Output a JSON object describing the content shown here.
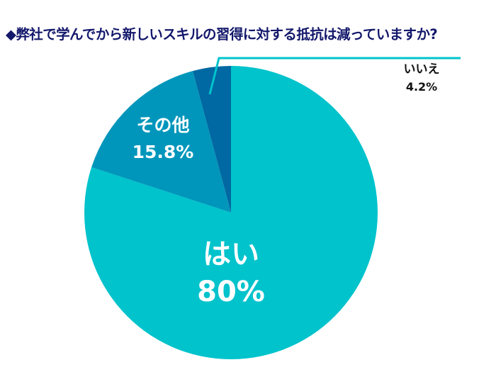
{
  "title": "◆弊社で学んでから新しいスキルの習得に対する抵抗は減っていますか?",
  "chart_data": {
    "type": "pie",
    "title": "◆弊社で学んでから新しいスキルの習得に対する抵抗は減っていますか?",
    "categories": [
      "はい",
      "その他",
      "いいえ"
    ],
    "values": [
      80,
      15.8,
      4.2
    ],
    "value_labels": [
      "80%",
      "15.8%",
      "4.2%"
    ],
    "colors": [
      "#00c3cc",
      "#0096bb",
      "#0068a2"
    ],
    "start_angle": "12 o'clock, clockwise",
    "legend": "none (labels on slices; いいえ uses leader line)"
  },
  "labels": {
    "yes": {
      "name": "はい",
      "value": "80%"
    },
    "other": {
      "name": "その他",
      "value": "15.8%"
    },
    "no": {
      "name": "いいえ",
      "value": "4.2%"
    }
  },
  "colors": {
    "title": "#13186b",
    "leader_line": "#00c3cc"
  }
}
